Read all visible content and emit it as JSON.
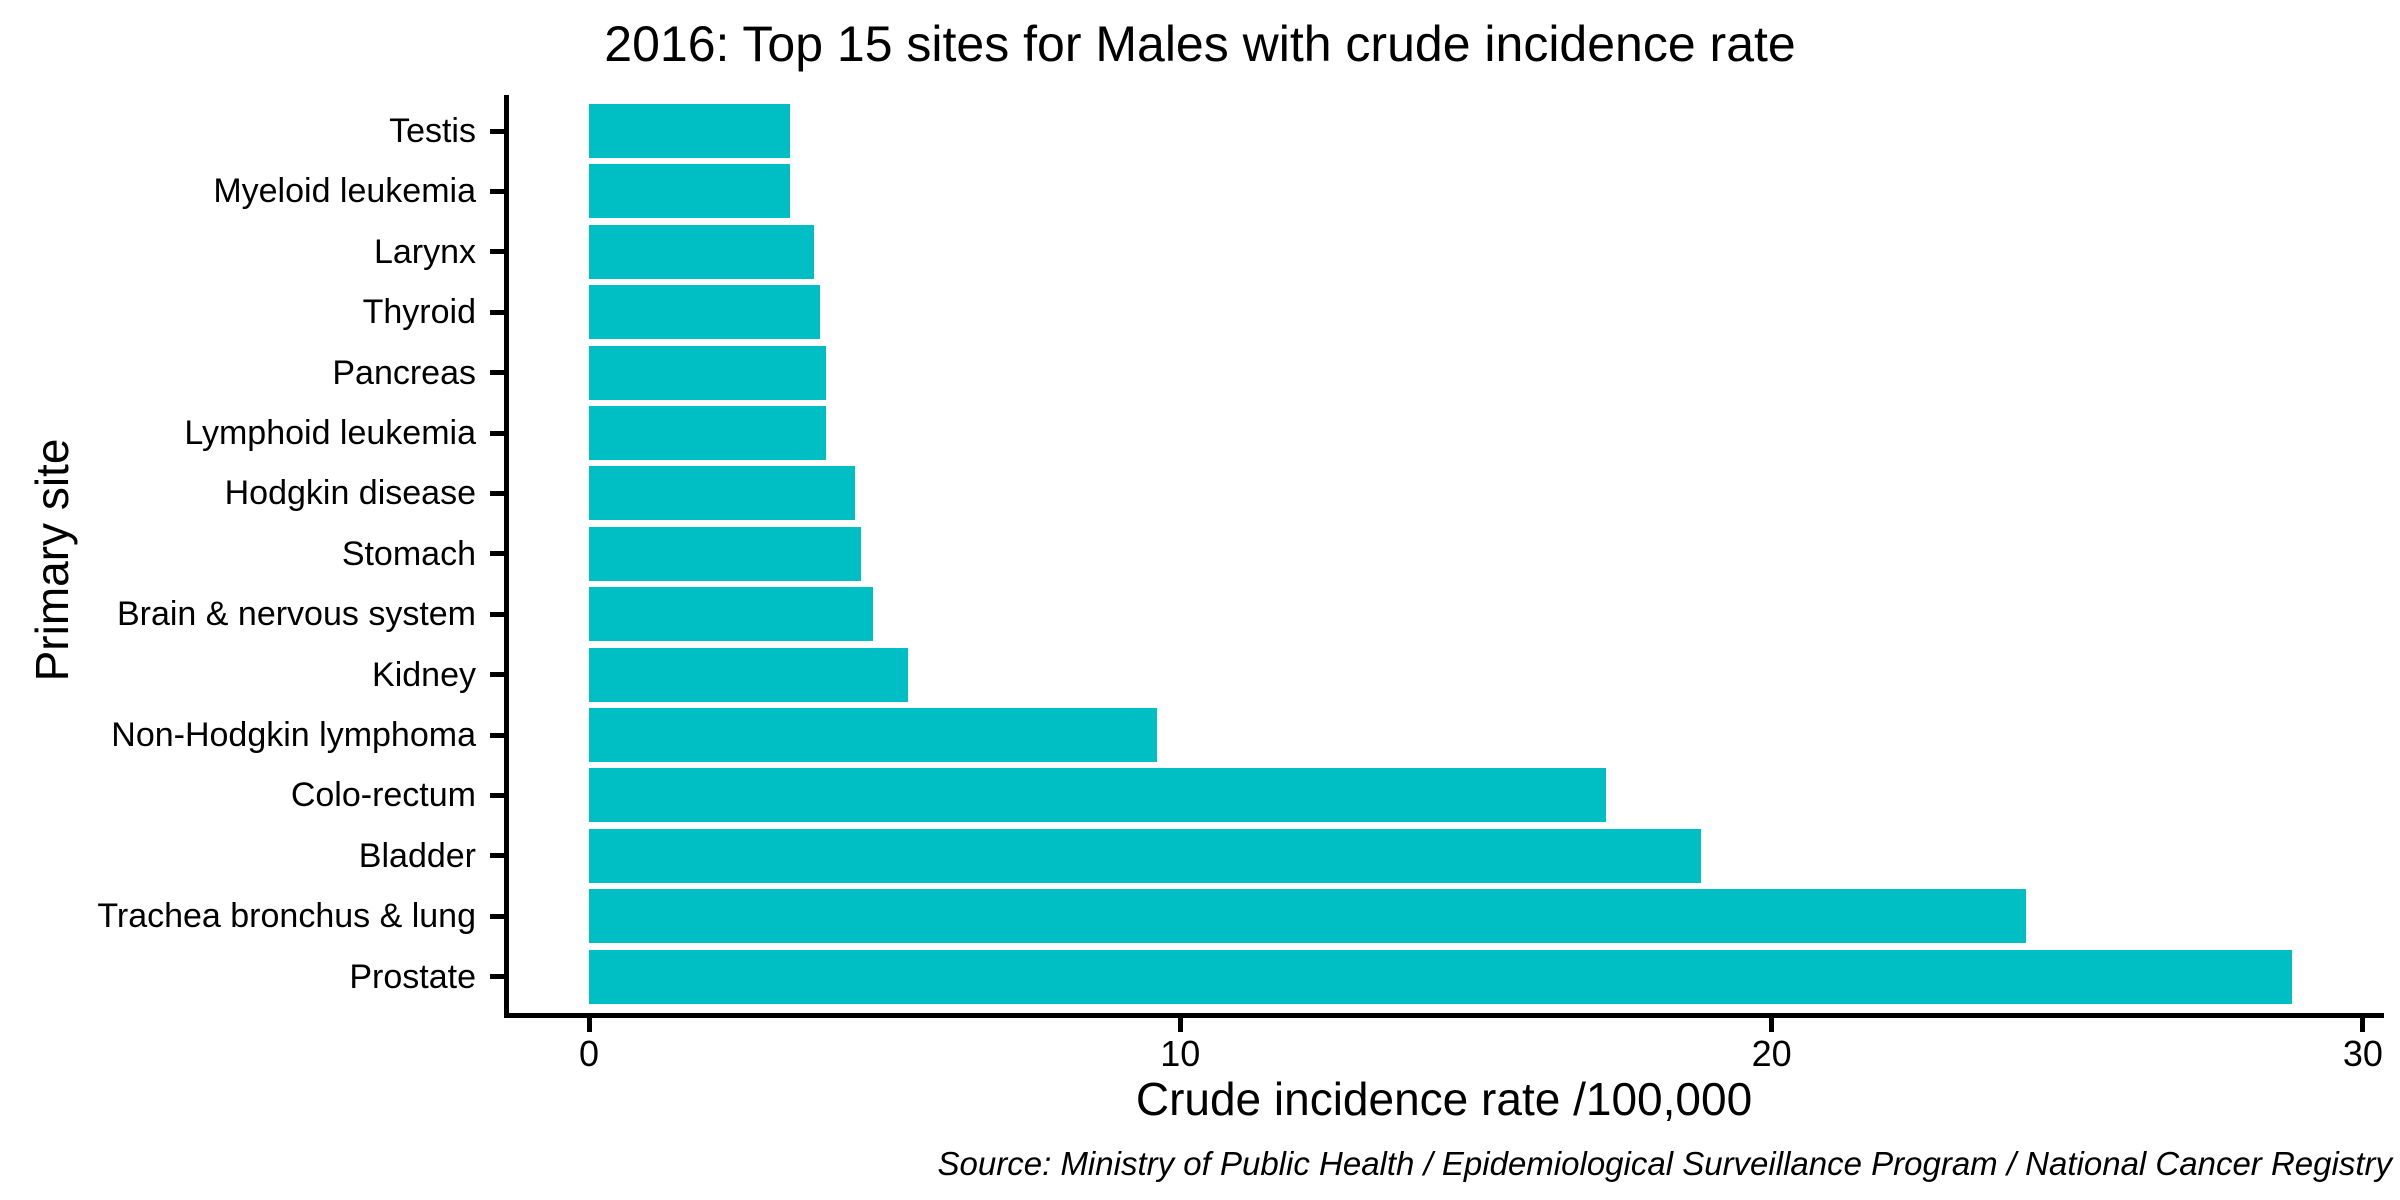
{
  "title": "2016: Top 15 sites for Males with crude incidence rate",
  "source_note": "Source: Ministry of Public Health / Epidemiological Surveillance Program / National Cancer Registry",
  "colors": {
    "bar": "#00BFC4",
    "axis": "#000000",
    "text": "#000000",
    "background": "#FFFFFF"
  },
  "chart_data": {
    "type": "bar",
    "orientation": "horizontal",
    "title": "2016: Top 15 sites for Males with crude incidence rate",
    "xlabel": "Crude incidence rate /100,000",
    "ylabel": "Primary site",
    "categories": [
      "Testis",
      "Myeloid leukemia",
      "Larynx",
      "Thyroid",
      "Pancreas",
      "Lymphoid leukemia",
      "Hodgkin disease",
      "Stomach",
      "Brain & nervous system",
      "Kidney",
      "Non-Hodgkin lymphoma",
      "Colo-rectum",
      "Bladder",
      "Trachea bronchus & lung",
      "Prostate"
    ],
    "values": [
      3.4,
      3.4,
      3.8,
      3.9,
      4.0,
      4.0,
      4.5,
      4.6,
      4.8,
      5.4,
      9.6,
      17.2,
      18.8,
      24.3,
      28.8
    ],
    "xlim": [
      0,
      30
    ],
    "xticks": [
      0,
      10,
      20,
      30
    ],
    "grid": false,
    "legend": false
  }
}
